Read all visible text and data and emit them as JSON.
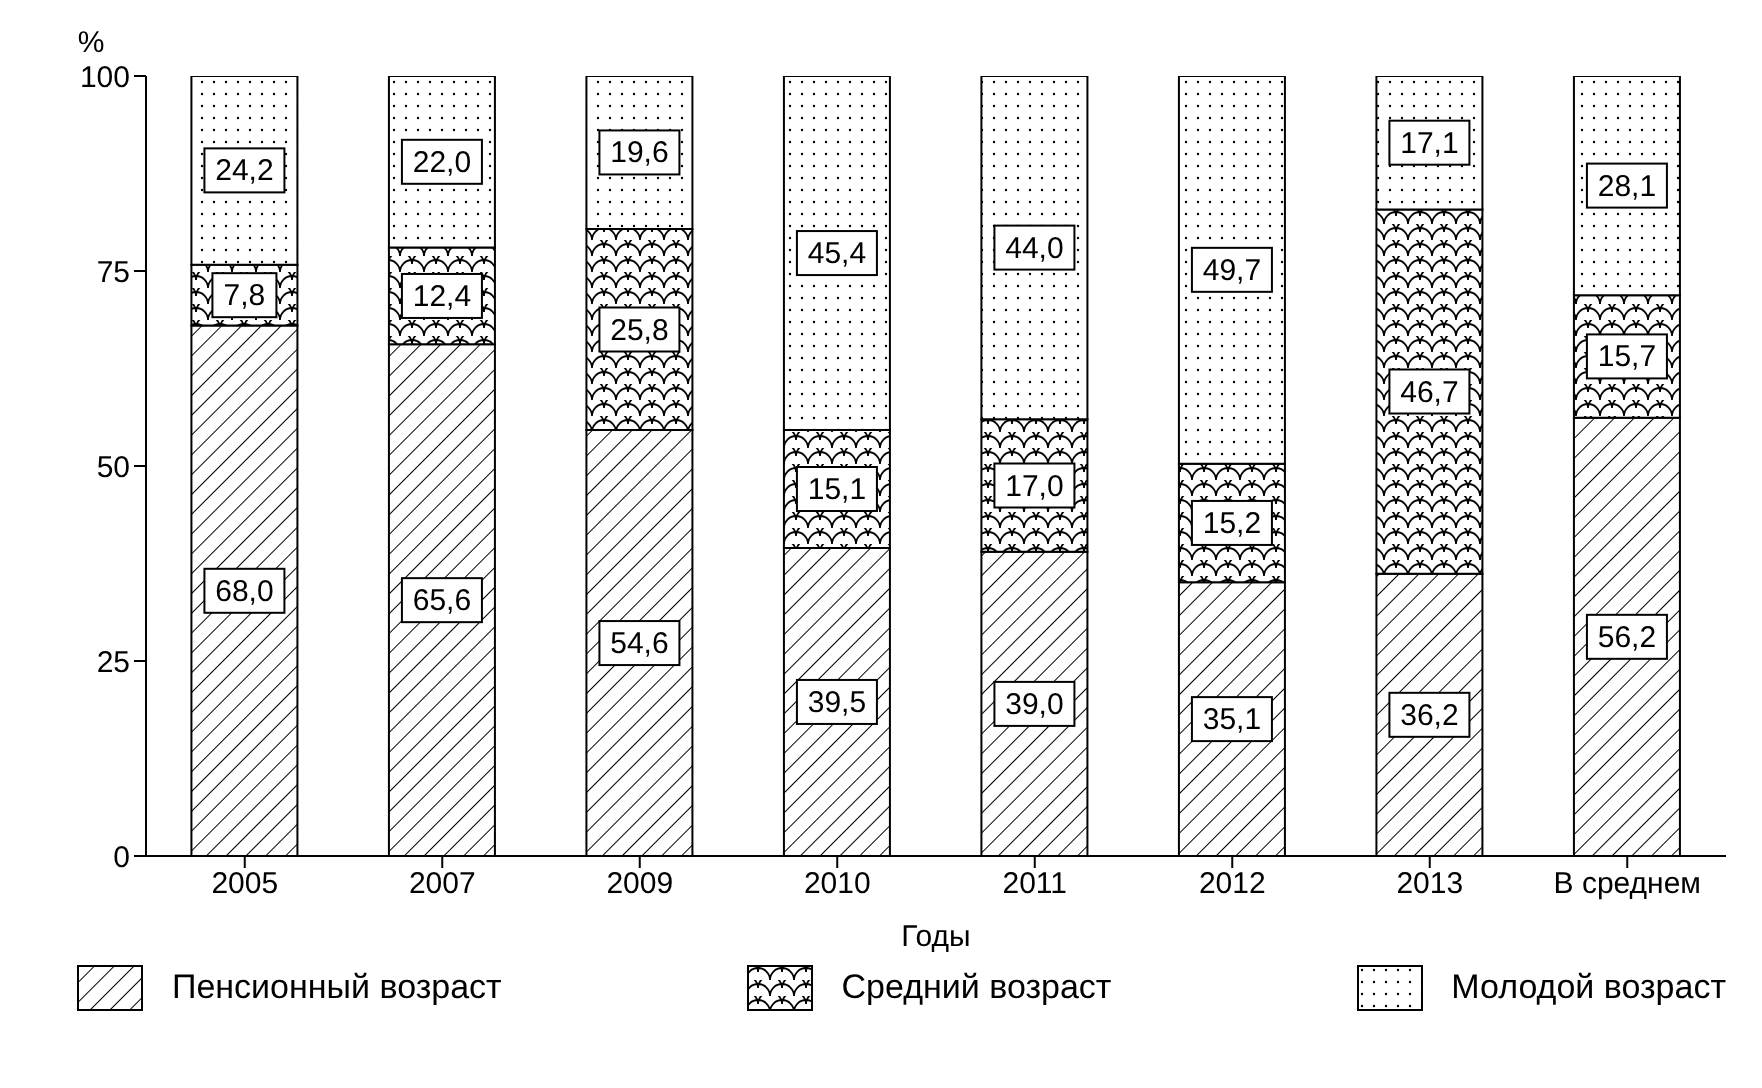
{
  "chart_data": {
    "type": "bar",
    "stacked": true,
    "xlabel": "Годы",
    "ylabel": "%",
    "categories": [
      "2005",
      "2007",
      "2009",
      "2010",
      "2011",
      "2012",
      "2013",
      "В среднем"
    ],
    "series": [
      {
        "name": "Пенсионный возраст",
        "color": "#000000",
        "values": [
          68.0,
          65.6,
          54.6,
          39.5,
          39.0,
          35.1,
          36.2,
          56.2
        ],
        "value_labels": [
          "68,0",
          "65,6",
          "54,6",
          "39,5",
          "39,0",
          "35,1",
          "36,2",
          "56,2"
        ]
      },
      {
        "name": "Средний возраст",
        "color": "#000000",
        "values": [
          7.8,
          12.4,
          25.8,
          15.1,
          17.0,
          15.2,
          46.7,
          15.7
        ],
        "value_labels": [
          "7,8",
          "12,4",
          "25,8",
          "15,1",
          "17,0",
          "15,2",
          "46,7",
          "15,7"
        ]
      },
      {
        "name": "Молодой возраст",
        "color": "#000000",
        "values": [
          24.2,
          22.0,
          19.6,
          45.4,
          44.0,
          49.7,
          17.1,
          28.1
        ],
        "value_labels": [
          "24,2",
          "22,0",
          "19,6",
          "45,4",
          "44,0",
          "49,7",
          "17,1",
          "28,1"
        ]
      }
    ],
    "ylim": [
      0,
      100
    ],
    "yticks": [
      0,
      25,
      50,
      75,
      100
    ],
    "legend": "bottom"
  }
}
